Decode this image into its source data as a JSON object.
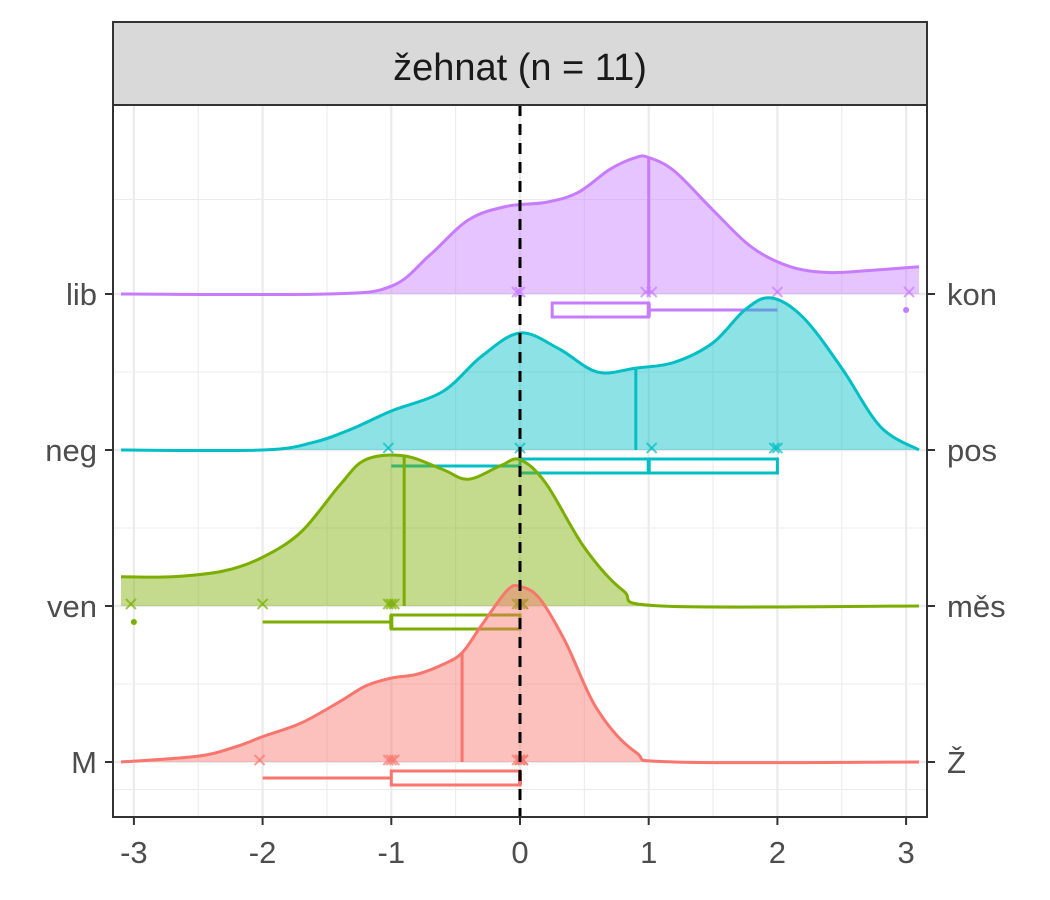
{
  "chart_data": {
    "type": "ridgeline-density",
    "facet_title": "žehnat (n = 11)",
    "x_ticks": [
      "-3",
      "-2",
      "-1",
      "0",
      "1",
      "2",
      "3"
    ],
    "xlim": [
      -3.1,
      3.1
    ],
    "grid": true,
    "reference_line_x": 0,
    "series": [
      {
        "left_label": "M",
        "right_label": "Ž",
        "color": "#F8766D",
        "density_x": [
          -3.1,
          -2.5,
          -2.2,
          -2.0,
          -1.7,
          -1.4,
          -1.2,
          -1.0,
          -0.8,
          -0.6,
          -0.45,
          -0.3,
          -0.1,
          0.0,
          0.15,
          0.35,
          0.6,
          0.9,
          1.2,
          3.1
        ],
        "density_y": [
          0.0,
          0.03,
          0.08,
          0.13,
          0.2,
          0.31,
          0.39,
          0.43,
          0.45,
          0.5,
          0.56,
          0.7,
          0.88,
          0.9,
          0.84,
          0.62,
          0.27,
          0.05,
          0.0,
          0.0
        ],
        "median": -0.45,
        "points": [
          -2.0,
          -1.0,
          -1.0,
          -1.0,
          0.0,
          0.0,
          0.0,
          0.0,
          0.0
        ],
        "box": {
          "whisker_low": -2.0,
          "q1": -1.0,
          "median": 0.0,
          "q3": 0.0,
          "whisker_high": 0.0
        },
        "outliers": []
      },
      {
        "left_label": "ven",
        "right_label": "měs",
        "color": "#7CAE00",
        "density_x": [
          -3.1,
          -2.7,
          -2.3,
          -2.0,
          -1.7,
          -1.4,
          -1.2,
          -0.9,
          -0.6,
          -0.4,
          -0.15,
          0.0,
          0.2,
          0.5,
          0.8,
          1.1,
          3.1
        ],
        "density_y": [
          0.15,
          0.15,
          0.18,
          0.25,
          0.38,
          0.62,
          0.75,
          0.77,
          0.7,
          0.65,
          0.72,
          0.75,
          0.63,
          0.3,
          0.08,
          0.0,
          0.0
        ],
        "median": -0.9,
        "points": [
          -3.0,
          -2.0,
          -1.0,
          -1.0,
          -1.0,
          0.0,
          0.0,
          0.0,
          0.0
        ],
        "box": {
          "whisker_low": -2.0,
          "q1": -1.0,
          "median": -1.0,
          "q3": 0.0,
          "whisker_high": 0.0
        },
        "outliers": [
          -3.0
        ]
      },
      {
        "left_label": "neg",
        "right_label": "pos",
        "color": "#00BFC4",
        "density_x": [
          -3.1,
          -2.0,
          -1.6,
          -1.3,
          -1.0,
          -0.6,
          -0.3,
          0.0,
          0.3,
          0.6,
          0.9,
          1.2,
          1.5,
          1.75,
          1.95,
          2.2,
          2.5,
          2.8,
          3.1
        ],
        "density_y": [
          0.0,
          0.0,
          0.04,
          0.11,
          0.2,
          0.3,
          0.48,
          0.6,
          0.52,
          0.4,
          0.42,
          0.45,
          0.55,
          0.72,
          0.78,
          0.68,
          0.42,
          0.12,
          0.0
        ],
        "median": 0.9,
        "points": [
          -1.0,
          0.0,
          1.0,
          2.0,
          2.0
        ],
        "box": {
          "whisker_low": -1.0,
          "q1": 0.0,
          "median": 1.0,
          "q3": 2.0,
          "whisker_high": 2.0
        },
        "outliers": []
      },
      {
        "left_label": "lib",
        "right_label": "kon",
        "color": "#C77CFF",
        "density_x": [
          -3.1,
          -1.5,
          -1.0,
          -0.7,
          -0.4,
          -0.1,
          0.2,
          0.45,
          0.7,
          0.9,
          1.0,
          1.2,
          1.5,
          1.8,
          2.1,
          2.4,
          2.7,
          3.1
        ],
        "density_y": [
          0.0,
          0.0,
          0.04,
          0.2,
          0.38,
          0.45,
          0.47,
          0.52,
          0.64,
          0.7,
          0.7,
          0.63,
          0.43,
          0.24,
          0.14,
          0.11,
          0.12,
          0.14
        ],
        "median": 1.0,
        "points": [
          0.0,
          0.0,
          1.0,
          1.0,
          2.0,
          3.0
        ],
        "box": {
          "whisker_low": 0.25,
          "q1": 0.25,
          "median": 1.0,
          "q3": 1.0,
          "whisker_high": 2.0
        },
        "outliers": [
          3.0
        ]
      }
    ]
  }
}
